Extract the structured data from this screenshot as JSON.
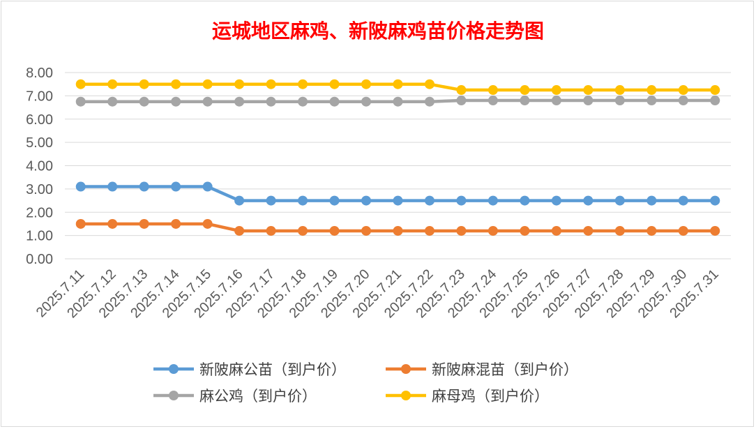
{
  "chart_data": {
    "type": "line",
    "title": "运城地区麻鸡、新陂麻鸡苗价格走势图",
    "title_color": "#ff0000",
    "categories": [
      "2025.7.11",
      "2025.7.12",
      "2025.7.13",
      "2025.7.14",
      "2025.7.15",
      "2025.7.16",
      "2025.7.17",
      "2025.7.18",
      "2025.7.19",
      "2025.7.20",
      "2025.7.21",
      "2025.7.22",
      "2025.7.23",
      "2025.7.24",
      "2025.7.25",
      "2025.7.26",
      "2025.7.27",
      "2025.7.28",
      "2025.7.29",
      "2025.7.30",
      "2025.7.31"
    ],
    "ylim": [
      0,
      8
    ],
    "yticks": [
      "0.00",
      "1.00",
      "2.00",
      "3.00",
      "4.00",
      "5.00",
      "6.00",
      "7.00",
      "8.00"
    ],
    "grid": true,
    "legend_position": "bottom",
    "series": [
      {
        "name": "新陂麻公苗（到户价）",
        "color": "#5b9bd5",
        "values": [
          3.1,
          3.1,
          3.1,
          3.1,
          3.1,
          2.5,
          2.5,
          2.5,
          2.5,
          2.5,
          2.5,
          2.5,
          2.5,
          2.5,
          2.5,
          2.5,
          2.5,
          2.5,
          2.5,
          2.5,
          2.5
        ]
      },
      {
        "name": "新陂麻混苗（到户价）",
        "color": "#ed7d31",
        "values": [
          1.5,
          1.5,
          1.5,
          1.5,
          1.5,
          1.2,
          1.2,
          1.2,
          1.2,
          1.2,
          1.2,
          1.2,
          1.2,
          1.2,
          1.2,
          1.2,
          1.2,
          1.2,
          1.2,
          1.2,
          1.2
        ]
      },
      {
        "name": "麻公鸡（到户价）",
        "color": "#a5a5a5",
        "values": [
          6.75,
          6.75,
          6.75,
          6.75,
          6.75,
          6.75,
          6.75,
          6.75,
          6.75,
          6.75,
          6.75,
          6.75,
          6.8,
          6.8,
          6.8,
          6.8,
          6.8,
          6.8,
          6.8,
          6.8,
          6.8
        ]
      },
      {
        "name": "麻母鸡（到户价）",
        "color": "#ffc000",
        "values": [
          7.5,
          7.5,
          7.5,
          7.5,
          7.5,
          7.5,
          7.5,
          7.5,
          7.5,
          7.5,
          7.5,
          7.5,
          7.25,
          7.25,
          7.25,
          7.25,
          7.25,
          7.25,
          7.25,
          7.25,
          7.25
        ]
      }
    ]
  }
}
